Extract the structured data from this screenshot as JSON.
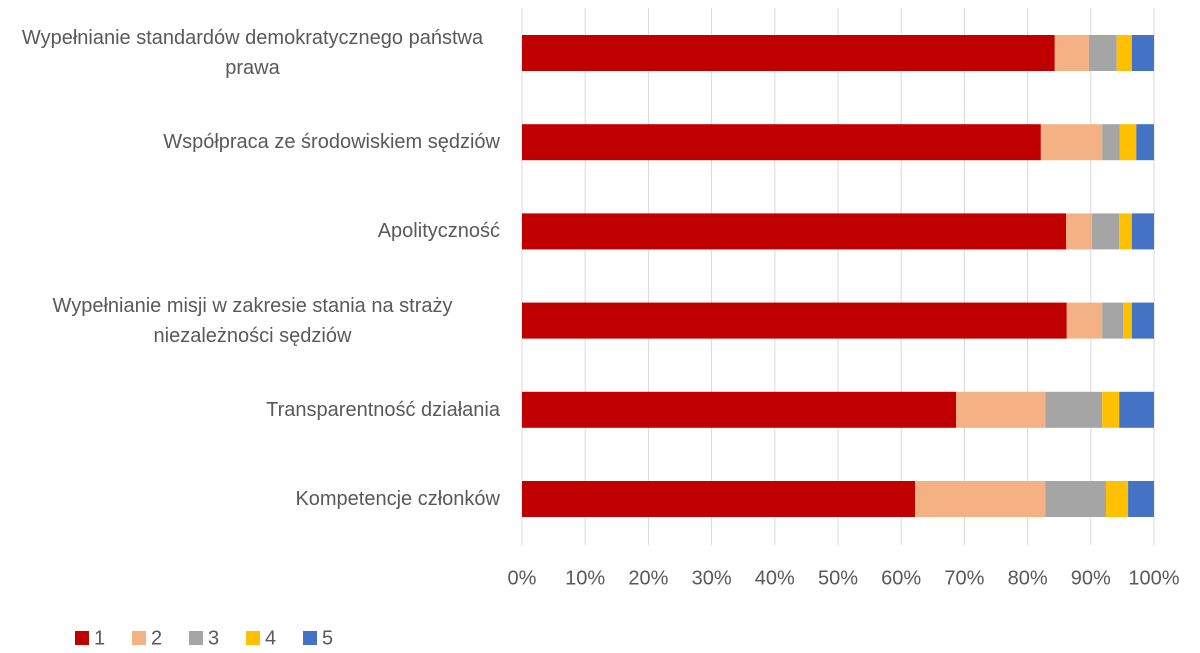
{
  "chart_data": {
    "type": "stacked-bar-horizontal",
    "categories": [
      "Wypełnianie standardów demokratycznego państwa prawa",
      "Współpraca ze środowiskiem sędziów",
      "Apolityczność",
      "Wypełnianie misji w zakresie stania na straży niezależności sędziów",
      "Transparentność działania",
      "Kompetencje członków"
    ],
    "series": [
      {
        "name": "1",
        "color": "#c00000",
        "values": [
          84.3,
          82.1,
          86.1,
          86.2,
          68.7,
          62.2
        ]
      },
      {
        "name": "2",
        "color": "#f4b183",
        "values": [
          5.4,
          9.7,
          4.1,
          5.6,
          14.1,
          20.6
        ]
      },
      {
        "name": "3",
        "color": "#a5a5a5",
        "values": [
          4.4,
          2.8,
          4.3,
          3.3,
          9.0,
          9.6
        ]
      },
      {
        "name": "4",
        "color": "#ffc000",
        "values": [
          2.4,
          2.6,
          2.0,
          1.4,
          2.7,
          3.5
        ]
      },
      {
        "name": "5",
        "color": "#4472c4",
        "values": [
          3.5,
          2.8,
          3.5,
          3.5,
          5.5,
          4.1
        ]
      }
    ],
    "xlim": [
      0,
      100
    ],
    "xticks": [
      {
        "value": 0,
        "label": "0%"
      },
      {
        "value": 10,
        "label": "10%"
      },
      {
        "value": 20,
        "label": "20%"
      },
      {
        "value": 30,
        "label": "30%"
      },
      {
        "value": 40,
        "label": "40%"
      },
      {
        "value": 50,
        "label": "50%"
      },
      {
        "value": 60,
        "label": "60%"
      },
      {
        "value": 70,
        "label": "70%"
      },
      {
        "value": 80,
        "label": "80%"
      },
      {
        "value": 90,
        "label": "90%"
      },
      {
        "value": 100,
        "label": "100%"
      }
    ],
    "grid": true,
    "legend": "bottom-left"
  }
}
